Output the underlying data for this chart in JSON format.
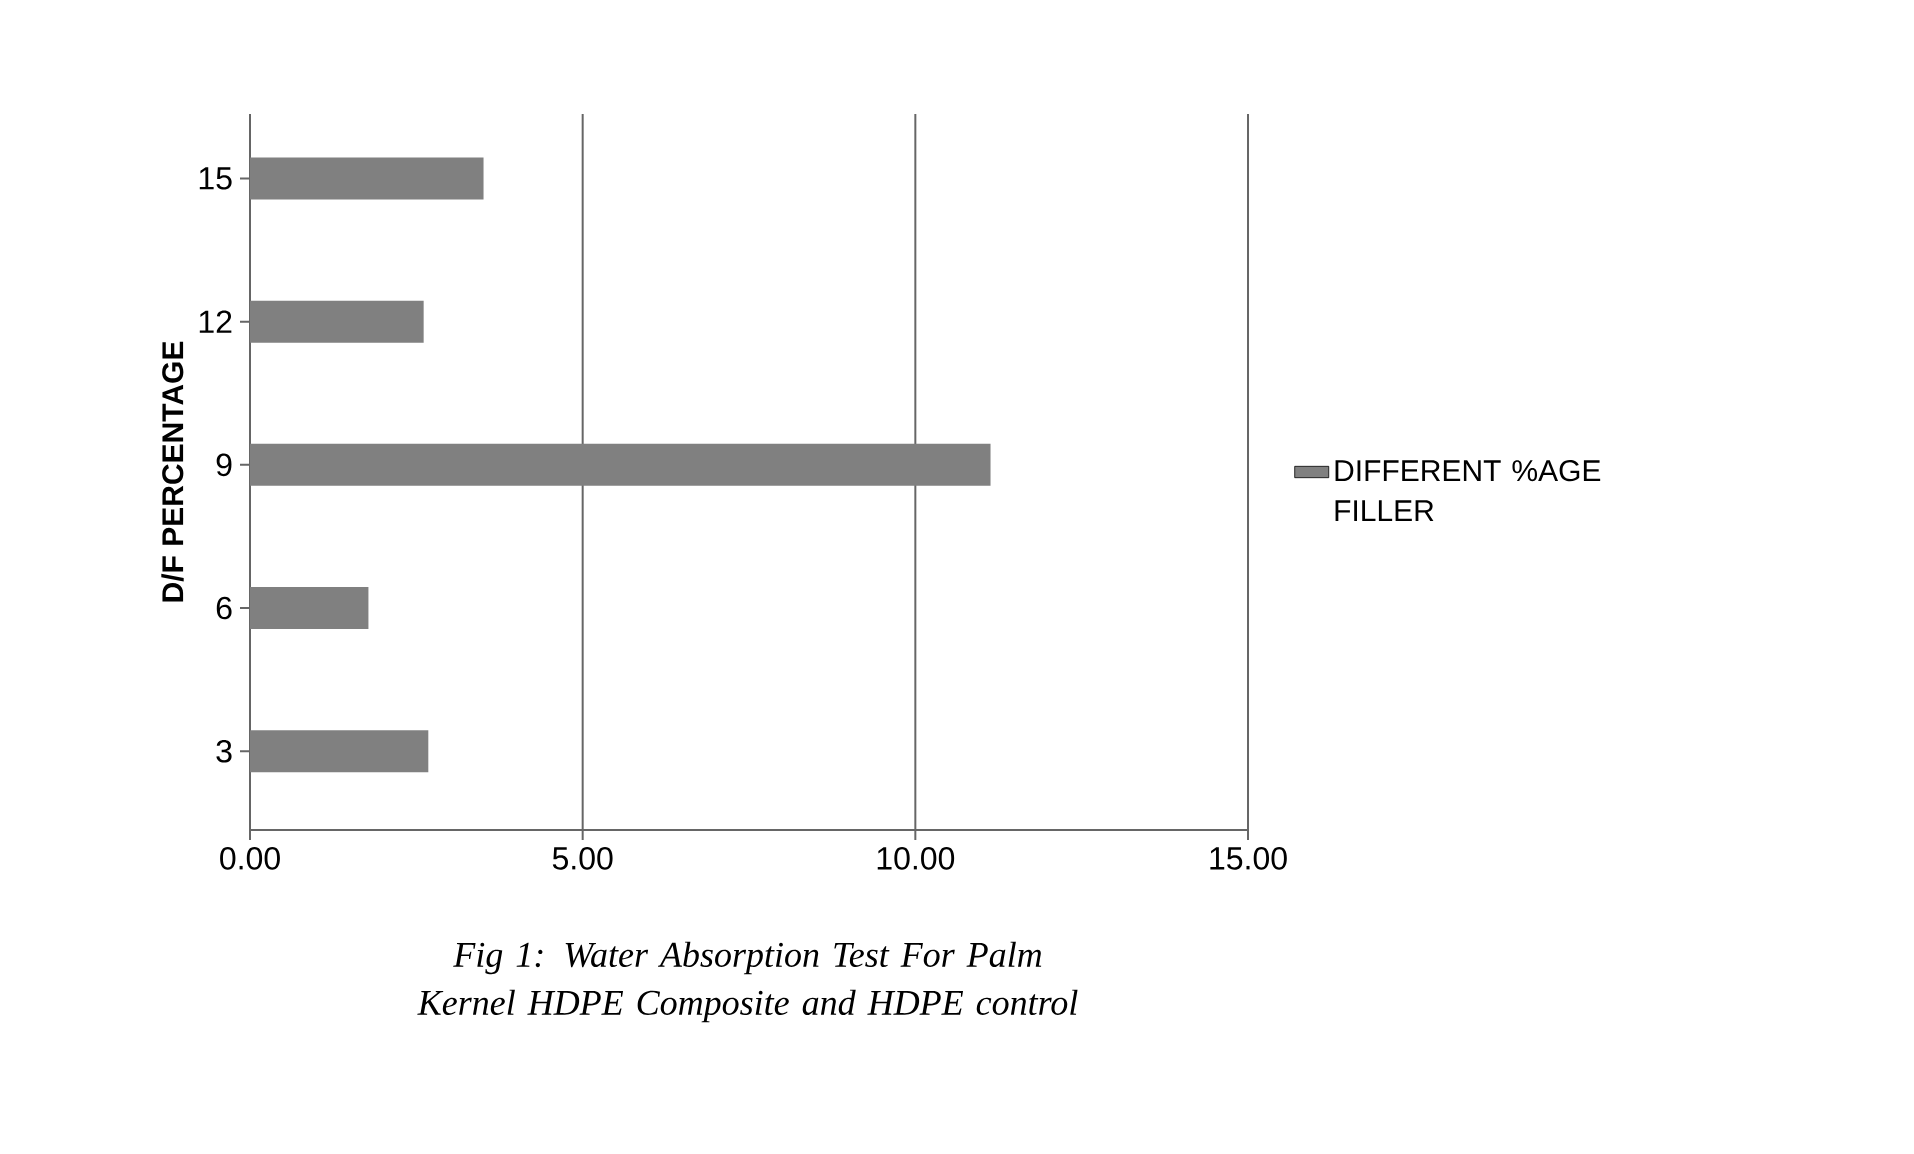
{
  "chart_data": {
    "type": "bar",
    "orientation": "horizontal",
    "title": "Fig 1: Water Absorption Test For Palm Kernel HDPE Composite and HDPE control",
    "ylabel": "D/F PERCENTAGE",
    "categories": [
      "15",
      "12",
      "9",
      "6",
      "3"
    ],
    "series": [
      {
        "name": "DIFFERENT %AGE FILLER",
        "color": "#808080",
        "values": [
          3.51,
          2.61,
          11.13,
          1.78,
          2.68
        ]
      }
    ],
    "xlim": [
      0,
      15
    ],
    "xticks": [
      {
        "value": 0,
        "label": "0.00"
      },
      {
        "value": 5,
        "label": "5.00"
      },
      {
        "value": 10,
        "label": "10.00"
      },
      {
        "value": 15,
        "label": "15.00"
      }
    ],
    "grid": "x",
    "legend": "right"
  }
}
